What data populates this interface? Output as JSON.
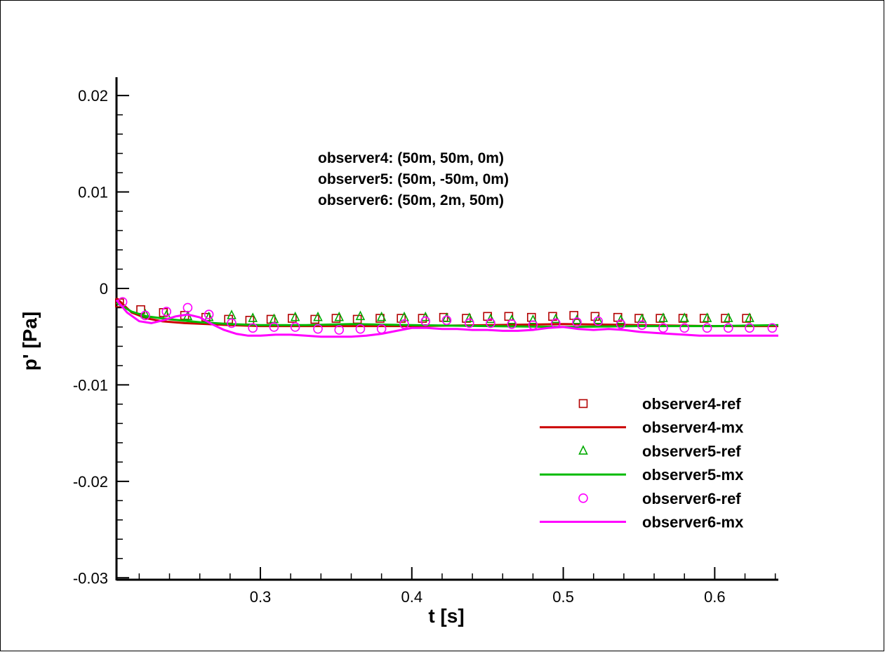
{
  "chart_data": {
    "type": "line",
    "xlabel": "t [s]",
    "ylabel": "p' [Pa]",
    "xlim": [
      0.205,
      0.642
    ],
    "ylim": [
      -0.0302,
      0.0219
    ],
    "x_ticks": [
      {
        "value": 0.3,
        "label": "0.3"
      },
      {
        "value": 0.4,
        "label": "0.4"
      },
      {
        "value": 0.5,
        "label": "0.5"
      },
      {
        "value": 0.6,
        "label": "0.6"
      }
    ],
    "y_ticks": [
      {
        "value": 0.02,
        "label": "0.02"
      },
      {
        "value": 0.01,
        "label": "0.01"
      },
      {
        "value": 0.0,
        "label": "0"
      },
      {
        "value": -0.01,
        "label": "-0.01"
      },
      {
        "value": -0.02,
        "label": "-0.02"
      },
      {
        "value": -0.03,
        "label": "-0.03"
      }
    ],
    "annotations": [
      "observer4: (50m, 50m, 0m)",
      "observer5: (50m, -50m, 0m)",
      "observer6: (50m, 2m, 50m)"
    ],
    "legend_position": "bottom-right",
    "grid": false,
    "series": [
      {
        "name": "observer4-ref",
        "kind": "marker",
        "marker": "square",
        "color": "#b30000",
        "x": [
          0.207,
          0.221,
          0.236,
          0.25,
          0.264,
          0.279,
          0.293,
          0.307,
          0.321,
          0.336,
          0.35,
          0.364,
          0.379,
          0.393,
          0.407,
          0.421,
          0.436,
          0.45,
          0.464,
          0.479,
          0.493,
          0.507,
          0.521,
          0.536,
          0.55,
          0.564,
          0.579,
          0.593,
          0.607,
          0.621
        ],
        "y": [
          -0.0015,
          -0.0022,
          -0.0025,
          -0.0028,
          -0.003,
          -0.0032,
          -0.0033,
          -0.0032,
          -0.0031,
          -0.0032,
          -0.0031,
          -0.0032,
          -0.0031,
          -0.0031,
          -0.0031,
          -0.003,
          -0.0031,
          -0.0029,
          -0.0029,
          -0.003,
          -0.0029,
          -0.0028,
          -0.0029,
          -0.003,
          -0.0031,
          -0.0031,
          -0.0031,
          -0.0031,
          -0.0031,
          -0.0031
        ]
      },
      {
        "name": "observer4-mx",
        "kind": "line",
        "color": "#cc0000",
        "x": [
          0.205,
          0.215,
          0.225,
          0.235,
          0.25,
          0.265,
          0.28,
          0.3,
          0.33,
          0.36,
          0.4,
          0.45,
          0.5,
          0.55,
          0.6,
          0.642
        ],
        "y": [
          -0.001,
          -0.0025,
          -0.0031,
          -0.0034,
          -0.0036,
          -0.0037,
          -0.0038,
          -0.0039,
          -0.0039,
          -0.0039,
          -0.0039,
          -0.0038,
          -0.0037,
          -0.0038,
          -0.0039,
          -0.0039
        ]
      },
      {
        "name": "observer5-ref",
        "kind": "marker",
        "marker": "triangle",
        "color": "#00aa00",
        "x": [
          0.224,
          0.238,
          0.252,
          0.266,
          0.281,
          0.295,
          0.309,
          0.323,
          0.338,
          0.352,
          0.366,
          0.38,
          0.395,
          0.409,
          0.423,
          0.438,
          0.452,
          0.466,
          0.48,
          0.495,
          0.509,
          0.523,
          0.538,
          0.552,
          0.566,
          0.58,
          0.595,
          0.609,
          0.623
        ],
        "y": [
          -0.0027,
          -0.0028,
          -0.0029,
          -0.003,
          -0.0028,
          -0.0031,
          -0.0032,
          -0.003,
          -0.003,
          -0.003,
          -0.0029,
          -0.003,
          -0.003,
          -0.003,
          -0.0031,
          -0.0031,
          -0.0032,
          -0.0033,
          -0.0033,
          -0.0032,
          -0.0033,
          -0.0033,
          -0.0033,
          -0.0032,
          -0.0031,
          -0.0031,
          -0.0031,
          -0.0031,
          -0.0031
        ]
      },
      {
        "name": "observer5-mx",
        "kind": "line",
        "color": "#00bb00",
        "x": [
          0.205,
          0.215,
          0.225,
          0.24,
          0.26,
          0.28,
          0.3,
          0.33,
          0.36,
          0.4,
          0.45,
          0.5,
          0.55,
          0.6,
          0.642
        ],
        "y": [
          -0.0015,
          -0.0024,
          -0.0029,
          -0.0032,
          -0.0035,
          -0.0037,
          -0.0038,
          -0.0038,
          -0.0037,
          -0.0038,
          -0.0039,
          -0.004,
          -0.0039,
          -0.0039,
          -0.0038
        ]
      },
      {
        "name": "observer6-ref",
        "kind": "marker",
        "marker": "circle",
        "color": "#ff00ff",
        "x": [
          0.209,
          0.224,
          0.238,
          0.252,
          0.266,
          0.281,
          0.295,
          0.309,
          0.323,
          0.338,
          0.352,
          0.366,
          0.38,
          0.395,
          0.409,
          0.423,
          0.438,
          0.452,
          0.466,
          0.48,
          0.495,
          0.509,
          0.523,
          0.538,
          0.552,
          0.566,
          0.58,
          0.595,
          0.609,
          0.623,
          0.638
        ],
        "y": [
          -0.0014,
          -0.0028,
          -0.0024,
          -0.002,
          -0.0027,
          -0.0036,
          -0.0041,
          -0.004,
          -0.004,
          -0.0042,
          -0.0043,
          -0.0042,
          -0.0042,
          -0.0037,
          -0.0034,
          -0.0033,
          -0.0036,
          -0.0036,
          -0.0037,
          -0.0038,
          -0.0036,
          -0.0035,
          -0.0034,
          -0.0037,
          -0.0038,
          -0.0041,
          -0.0041,
          -0.0041,
          -0.0041,
          -0.0041,
          -0.0041
        ]
      },
      {
        "name": "observer6-mx",
        "kind": "line",
        "color": "#ff00ff",
        "x": [
          0.205,
          0.212,
          0.22,
          0.228,
          0.236,
          0.244,
          0.252,
          0.26,
          0.268,
          0.276,
          0.284,
          0.292,
          0.3,
          0.31,
          0.32,
          0.33,
          0.34,
          0.35,
          0.36,
          0.37,
          0.38,
          0.39,
          0.4,
          0.41,
          0.42,
          0.43,
          0.44,
          0.45,
          0.46,
          0.47,
          0.48,
          0.49,
          0.5,
          0.51,
          0.52,
          0.53,
          0.54,
          0.55,
          0.56,
          0.57,
          0.58,
          0.59,
          0.6,
          0.61,
          0.62,
          0.63,
          0.642
        ],
        "y": [
          -0.0012,
          -0.0025,
          -0.0034,
          -0.0036,
          -0.0033,
          -0.0029,
          -0.0027,
          -0.003,
          -0.0037,
          -0.0043,
          -0.0047,
          -0.0049,
          -0.0049,
          -0.0048,
          -0.0048,
          -0.0049,
          -0.005,
          -0.005,
          -0.005,
          -0.0049,
          -0.0047,
          -0.0044,
          -0.0041,
          -0.0041,
          -0.0042,
          -0.0042,
          -0.0043,
          -0.0043,
          -0.0044,
          -0.0044,
          -0.0043,
          -0.0041,
          -0.004,
          -0.0042,
          -0.0043,
          -0.0042,
          -0.0043,
          -0.0045,
          -0.0046,
          -0.0047,
          -0.0048,
          -0.0049,
          -0.0049,
          -0.0049,
          -0.0049,
          -0.0049,
          -0.0049
        ]
      }
    ]
  }
}
